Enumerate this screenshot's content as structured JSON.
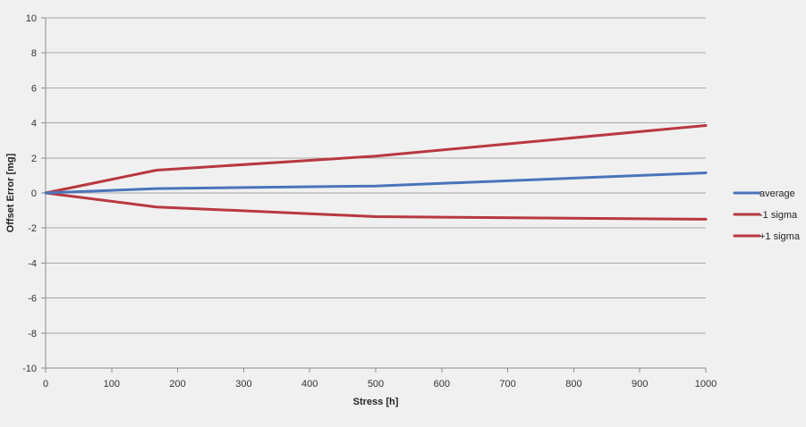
{
  "chart_data": {
    "type": "line",
    "title": "",
    "xlabel": "Stress [h]",
    "ylabel": "Offset Error [mg]",
    "xlim": [
      0,
      1000
    ],
    "ylim": [
      -10,
      10
    ],
    "x_ticks": [
      0,
      100,
      200,
      300,
      400,
      500,
      600,
      700,
      800,
      900,
      1000
    ],
    "y_ticks": [
      10,
      8,
      6,
      4,
      2,
      0,
      -2,
      -4,
      -6,
      -8,
      -10
    ],
    "grid": "horizontal",
    "legend_position": "right",
    "series": [
      {
        "name": "average",
        "color": "#4a74bb",
        "x": [
          0,
          168,
          500,
          1000
        ],
        "y": [
          0,
          0.25,
          0.4,
          1.15
        ]
      },
      {
        "name": "-1 sigma",
        "color": "#b8383f",
        "x": [
          0,
          168,
          500,
          1000
        ],
        "y": [
          0,
          -0.8,
          -1.35,
          -1.5
        ]
      },
      {
        "name": "+1 sigma",
        "color": "#b8383f",
        "x": [
          0,
          168,
          500,
          1000
        ],
        "y": [
          0,
          1.3,
          2.1,
          3.85
        ]
      }
    ]
  }
}
